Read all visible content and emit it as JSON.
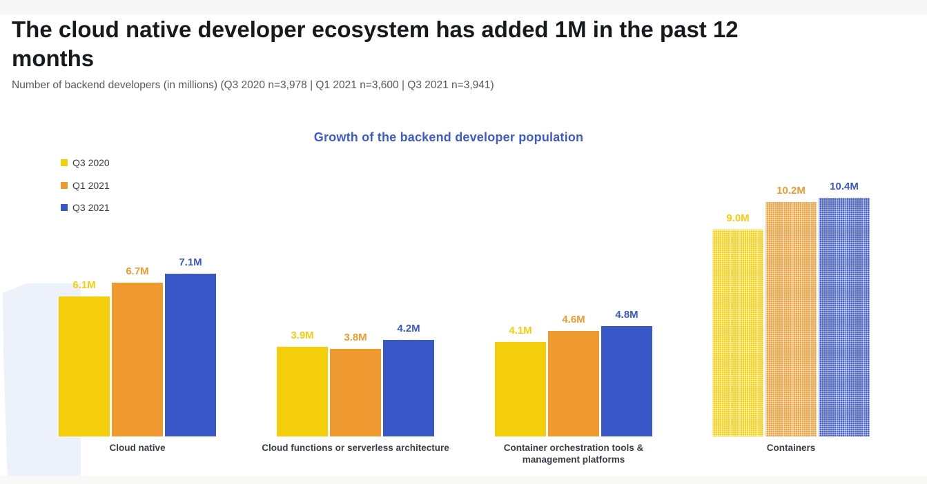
{
  "page": {
    "title_line1": "The cloud native developer ecosystem has added 1M in the past 12",
    "title_line2": "months",
    "subtitle": "Number of backend developers (in millions) (Q3 2020 n=3,978 | Q1 2021 n=3,600 | Q3 2021 n=3,941)"
  },
  "chart_data": {
    "type": "bar",
    "title": "Growth of the backend developer population",
    "title_color": "#3d5bd0",
    "categories": [
      "Cloud native",
      "Cloud functions or serverless architecture",
      "Container orchestration tools & management platforms",
      "Containers"
    ],
    "category_lines": [
      [
        "Cloud native"
      ],
      [
        "Cloud functions or serverless architecture"
      ],
      [
        "Container orchestration tools &",
        "management platforms"
      ],
      [
        "Containers"
      ]
    ],
    "series": [
      {
        "name": "Q3 2020",
        "color": "#f5ce0b",
        "values": [
          6.1,
          3.9,
          4.1,
          9.0
        ],
        "labels": [
          "6.1M",
          "3.9M",
          "4.1M",
          "9.0M"
        ]
      },
      {
        "name": "Q1 2021",
        "color": "#ef9a31",
        "values": [
          6.7,
          3.8,
          4.6,
          10.2
        ],
        "labels": [
          "6.7M",
          "3.8M",
          "4.6M",
          "10.2M"
        ]
      },
      {
        "name": "Q3 2021",
        "color": "#3a57c8",
        "values": [
          7.1,
          4.2,
          4.8,
          10.4
        ],
        "labels": [
          "7.1M",
          "4.2M",
          "4.8M",
          "10.4M"
        ]
      }
    ],
    "textured_categories": [
      false,
      false,
      false,
      true
    ],
    "unit": "millions of developers",
    "ylim": [
      0,
      11
    ],
    "grid": false,
    "legend_position": "top-left"
  },
  "colors": {
    "accent_shape": "#edf1f9",
    "top_band": "#f7f7f8",
    "bottom_band": "#faf7f7",
    "title_text": "#18191d",
    "subtitle_text": "#58595d",
    "label_text": "#3a3e48"
  }
}
